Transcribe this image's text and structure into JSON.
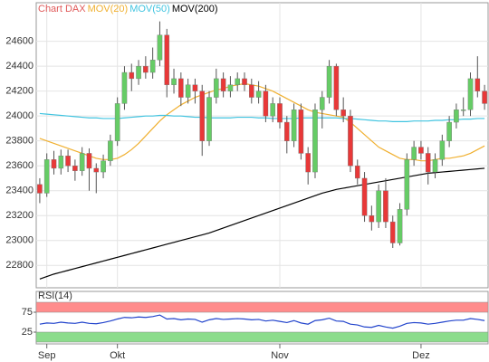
{
  "chart_data": [
    {
      "type": "candlestick",
      "title": "Chart DAX",
      "title_color": "#e05a5a",
      "categories": [
        null,
        "Sep",
        null,
        null,
        null,
        null,
        null,
        null,
        null,
        null,
        null,
        "Okt",
        null,
        null,
        null,
        null,
        null,
        null,
        null,
        null,
        null,
        null,
        null,
        null,
        null,
        null,
        null,
        null,
        null,
        null,
        null,
        null,
        null,
        null,
        "Nov",
        null,
        null,
        null,
        null,
        null,
        null,
        null,
        null,
        null,
        null,
        null,
        null,
        null,
        null,
        null,
        null,
        null,
        null,
        null,
        "Dez",
        null,
        null,
        null,
        null,
        null,
        null,
        null,
        null,
        null
      ],
      "open": [
        23450,
        23380,
        23650,
        23580,
        23680,
        23600,
        23560,
        23700,
        23580,
        23550,
        23640,
        23800,
        24100,
        24350,
        24300,
        24400,
        24350,
        24450,
        24650,
        24250,
        24300,
        24150,
        24250,
        24200,
        23800,
        24150,
        24300,
        24200,
        24250,
        24300,
        24250,
        24150,
        24200,
        24000,
        24100,
        23950,
        23800,
        24050,
        23700,
        23550,
        24050,
        24150,
        24400,
        24050,
        24000,
        23600,
        23500,
        23200,
        23150,
        23400,
        23150,
        22980,
        23250,
        23650,
        23750,
        23700,
        23550,
        23650,
        23800,
        23950,
        24050,
        24050,
        24300,
        24200
      ],
      "high": [
        23500,
        23700,
        23720,
        23730,
        23730,
        23650,
        23750,
        23740,
        23620,
        23690,
        23850,
        24150,
        24400,
        24420,
        24450,
        24480,
        24550,
        24760,
        24700,
        24380,
        24350,
        24300,
        24300,
        24250,
        24200,
        24380,
        24350,
        24320,
        24350,
        24350,
        24300,
        24280,
        24250,
        24150,
        24150,
        24000,
        24100,
        24100,
        23750,
        24100,
        24200,
        24450,
        24420,
        24150,
        24050,
        23650,
        23550,
        23280,
        23450,
        23500,
        23200,
        23300,
        23700,
        23800,
        23800,
        23750,
        23700,
        23850,
        24000,
        24100,
        24150,
        24350,
        24480,
        24250
      ],
      "low": [
        23300,
        23350,
        23530,
        23530,
        23550,
        23480,
        23520,
        23400,
        23380,
        23500,
        23600,
        23760,
        24050,
        24200,
        24250,
        24300,
        24300,
        24400,
        24150,
        24180,
        24080,
        24100,
        24100,
        23680,
        23760,
        24100,
        24150,
        24150,
        24200,
        24200,
        24100,
        24100,
        23950,
        23950,
        23900,
        23700,
        23750,
        23650,
        23450,
        23500,
        23900,
        24100,
        24000,
        23950,
        23550,
        23450,
        23150,
        23080,
        23100,
        23100,
        22940,
        22960,
        23200,
        23600,
        23650,
        23450,
        23500,
        23600,
        23750,
        23900,
        24000,
        24000,
        24150,
        24050
      ],
      "close": [
        23380,
        23650,
        23580,
        23680,
        23600,
        23560,
        23700,
        23580,
        23550,
        23640,
        23800,
        24100,
        24350,
        24300,
        24400,
        24350,
        24450,
        24650,
        24250,
        24300,
        24150,
        24250,
        24200,
        23800,
        24150,
        24300,
        24200,
        24250,
        24300,
        24250,
        24150,
        24200,
        24000,
        24100,
        23950,
        23800,
        24050,
        23700,
        23550,
        24050,
        24150,
        24400,
        24050,
        24000,
        23600,
        23500,
        23200,
        23150,
        23400,
        23150,
        22980,
        23250,
        23650,
        23750,
        23700,
        23550,
        23650,
        23800,
        23950,
        24050,
        24050,
        24300,
        24200,
        24100
      ],
      "up_color": "#66cc66",
      "down_color": "#e83838",
      "series": [
        {
          "name": "MOV(20)",
          "color": "#f0b030",
          "values": [
            23820,
            23800,
            23780,
            23760,
            23740,
            23720,
            23700,
            23680,
            23660,
            23650,
            23650,
            23660,
            23690,
            23730,
            23780,
            23840,
            23900,
            23960,
            24010,
            24050,
            24090,
            24120,
            24150,
            24170,
            24190,
            24210,
            24220,
            24240,
            24250,
            24260,
            24250,
            24240,
            24220,
            24200,
            24170,
            24140,
            24110,
            24080,
            24050,
            24030,
            24020,
            24010,
            24000,
            23990,
            23950,
            23900,
            23850,
            23800,
            23750,
            23720,
            23690,
            23660,
            23650,
            23650,
            23640,
            23640,
            23650,
            23660,
            23660,
            23670,
            23680,
            23700,
            23730,
            23760
          ]
        },
        {
          "name": "MOV(50)",
          "color": "#40c4e0",
          "values": [
            24020,
            24015,
            24010,
            24005,
            24000,
            23995,
            23990,
            23985,
            23985,
            23980,
            23980,
            23980,
            23985,
            23990,
            23995,
            24000,
            24000,
            24005,
            24005,
            24000,
            24000,
            23995,
            23990,
            23990,
            23985,
            23985,
            23985,
            23985,
            23990,
            23990,
            23990,
            23985,
            23985,
            23980,
            23980,
            23980,
            23980,
            23985,
            23985,
            23985,
            23985,
            23985,
            23985,
            23980,
            23980,
            23975,
            23970,
            23965,
            23960,
            23960,
            23955,
            23955,
            23955,
            23960,
            23960,
            23960,
            23965,
            23965,
            23970,
            23970,
            23975,
            23975,
            23980,
            23980
          ]
        },
        {
          "name": "MOV(200)",
          "color": "#000000",
          "values": [
            22690,
            22710,
            22730,
            22745,
            22760,
            22775,
            22790,
            22805,
            22820,
            22835,
            22850,
            22865,
            22880,
            22895,
            22910,
            22925,
            22940,
            22955,
            22970,
            22985,
            23000,
            23015,
            23030,
            23045,
            23060,
            23080,
            23100,
            23120,
            23140,
            23160,
            23180,
            23200,
            23220,
            23240,
            23260,
            23280,
            23300,
            23320,
            23340,
            23360,
            23380,
            23395,
            23410,
            23420,
            23430,
            23440,
            23450,
            23460,
            23470,
            23480,
            23490,
            23500,
            23510,
            23520,
            23530,
            23540,
            23545,
            23550,
            23555,
            23560,
            23565,
            23570,
            23575,
            23580
          ]
        }
      ],
      "ylim": [
        22620,
        24910
      ],
      "yticks": [
        22800,
        23000,
        23200,
        23400,
        23600,
        23800,
        24000,
        24200,
        24400,
        24600
      ],
      "grid": true
    },
    {
      "type": "line",
      "title": "RSI(14)",
      "color": "#2244cc",
      "values": [
        45,
        48,
        47,
        50,
        48,
        47,
        50,
        47,
        46,
        49,
        53,
        58,
        62,
        61,
        63,
        62,
        64,
        68,
        58,
        59,
        56,
        58,
        57,
        50,
        56,
        59,
        57,
        58,
        59,
        58,
        56,
        57,
        53,
        55,
        52,
        49,
        54,
        48,
        45,
        54,
        56,
        60,
        53,
        52,
        45,
        43,
        38,
        37,
        42,
        38,
        35,
        40,
        47,
        49,
        48,
        45,
        47,
        50,
        53,
        55,
        55,
        59,
        57,
        54
      ],
      "ylim": [
        0,
        100
      ],
      "yticks": [
        25,
        75
      ],
      "zones": [
        {
          "from": 75,
          "to": 100,
          "color": "#ff8c8c"
        },
        {
          "from": 0,
          "to": 25,
          "color": "#8cdc8c"
        }
      ]
    }
  ]
}
